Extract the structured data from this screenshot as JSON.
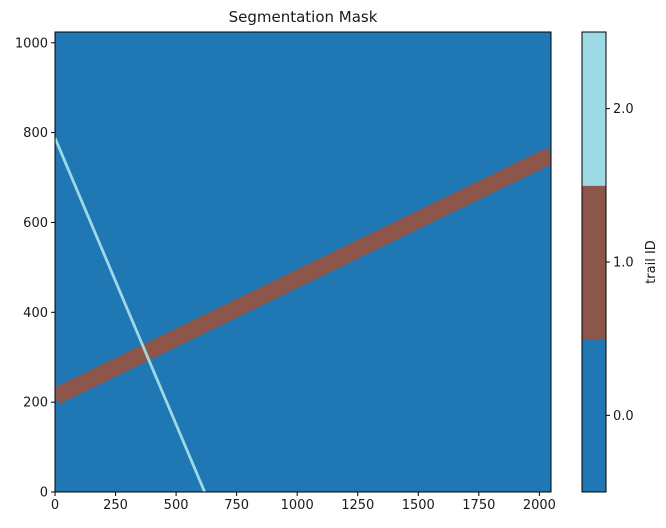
{
  "figure": {
    "background": "#ffffff"
  },
  "chart_data": {
    "type": "heatmap",
    "title": "Segmentation Mask",
    "xlabel": "",
    "ylabel": "",
    "xlim": [
      0,
      2048
    ],
    "ylim": [
      0,
      1024
    ],
    "x_ticks": [
      0,
      250,
      500,
      750,
      1000,
      1250,
      1500,
      1750,
      2000
    ],
    "y_ticks": [
      0,
      200,
      400,
      600,
      800,
      1000
    ],
    "grid": false,
    "background_class": {
      "id": 0,
      "color": "#1f77b4"
    },
    "trails": [
      {
        "id": 1,
        "color": "#8c564b",
        "start": [
          0,
          212
        ],
        "end": [
          2048,
          750
        ],
        "stroke_px": 17
      },
      {
        "id": 2,
        "color": "#9edae5",
        "start": [
          0,
          788
        ],
        "end": [
          618,
          0
        ],
        "stroke_px": 2.8
      }
    ],
    "colorbar": {
      "label": "trail ID",
      "tick_labels": [
        "0.0",
        "1.0",
        "2.0"
      ],
      "segments": [
        {
          "value": 0,
          "color": "#1f77b4"
        },
        {
          "value": 1,
          "color": "#8c564b"
        },
        {
          "value": 2,
          "color": "#9edae5"
        }
      ]
    }
  }
}
